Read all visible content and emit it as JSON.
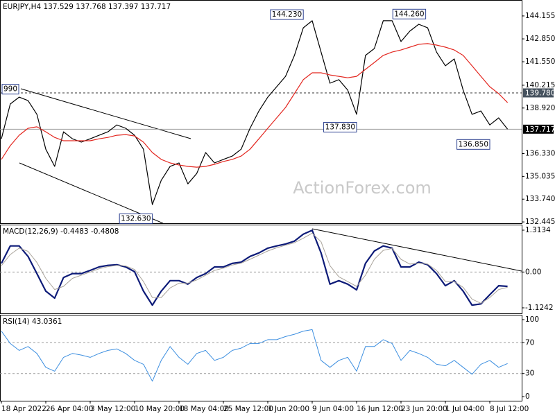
{
  "chart_data": [
    {
      "type": "line",
      "title": "EURJPY,H4  137.529 137.768 137.397 137.717",
      "watermark": "ActionForex.com",
      "ylim": [
        132.37,
        145.06
      ],
      "yticks": [
        144.155,
        {
          "value": 142.85,
          "label": "142.850"
        },
        {
          "value": 141.55,
          "label": "141.550"
        },
        140.215,
        {
          "value": 138.92,
          "label": "138.920"
        },
        {
          "value": 136.33,
          "label": "136.330"
        },
        135.035,
        {
          "value": 133.74,
          "label": "133.740"
        },
        132.445
      ],
      "price_lines": [
        {
          "value": 139.78,
          "label": "139.780",
          "style": "dashed",
          "color": "#46525e"
        },
        {
          "value": 137.717,
          "style": "solid",
          "color": "#000000"
        }
      ],
      "annotations": [
        {
          "label": "990",
          "value": 139.99,
          "x": 0
        },
        {
          "label": "144.230",
          "value": 144.23,
          "x": 34
        },
        {
          "label": "144.260",
          "value": 144.26,
          "x": 44
        },
        {
          "label": "137.830",
          "value": 137.83,
          "x": 40
        },
        {
          "label": "136.850",
          "value": 136.85,
          "x": 55
        },
        {
          "label": "132.630",
          "value": 132.63,
          "x": 17
        }
      ],
      "series": [
        {
          "color": "#000000",
          "width": 1.2,
          "values": [
            137.17,
            139.15,
            139.54,
            139.34,
            138.56,
            136.58,
            135.6,
            137.57,
            137.17,
            136.98,
            137.17,
            137.37,
            137.57,
            137.96,
            137.77,
            137.37,
            136.58,
            133.43,
            134.81,
            135.6,
            135.8,
            134.61,
            135.2,
            136.39,
            135.8,
            136.0,
            136.19,
            136.58,
            137.77,
            138.75,
            139.54,
            140.13,
            140.72,
            141.91,
            143.48,
            143.88,
            142.1,
            140.33,
            140.53,
            139.94,
            138.56,
            141.91,
            142.3,
            143.88,
            143.88,
            142.7,
            143.29,
            143.68,
            143.48,
            142.1,
            141.32,
            141.71,
            139.94,
            138.56,
            138.75,
            137.96,
            138.36,
            137.72
          ]
        },
        {
          "color": "#e3261f",
          "width": 1.2,
          "values": [
            136.0,
            136.78,
            137.37,
            137.77,
            137.85,
            137.57,
            137.25,
            137.06,
            137.06,
            137.06,
            137.06,
            137.17,
            137.25,
            137.37,
            137.41,
            137.33,
            136.98,
            136.39,
            136.0,
            135.8,
            135.68,
            135.6,
            135.56,
            135.6,
            135.72,
            135.88,
            136.0,
            136.19,
            136.58,
            137.17,
            137.77,
            138.36,
            138.95,
            139.74,
            140.53,
            140.92,
            140.92,
            140.8,
            140.72,
            140.64,
            140.72,
            141.12,
            141.51,
            141.91,
            142.1,
            142.22,
            142.38,
            142.54,
            142.58,
            142.5,
            142.38,
            142.22,
            141.91,
            141.32,
            140.72,
            140.13,
            139.74,
            139.23
          ]
        }
      ]
    },
    {
      "type": "line",
      "title": "MACD(12,26,9) -0.4483 -0.4808",
      "ylim": [
        -1.298,
        1.487
      ],
      "yticks": [
        1.3134,
        {
          "value": 0,
          "label": "0.00"
        },
        -1.1242
      ],
      "levels": [
        0
      ],
      "series": [
        {
          "color": "#0d1b78",
          "width": 2.2,
          "values": [
            0.27,
            0.82,
            0.82,
            0.49,
            -0.05,
            -0.6,
            -0.82,
            -0.17,
            -0.05,
            -0.05,
            0.05,
            0.16,
            0.21,
            0.23,
            0.16,
            0.01,
            -0.6,
            -1.04,
            -0.6,
            -0.27,
            -0.27,
            -0.38,
            -0.17,
            -0.05,
            0.16,
            0.16,
            0.27,
            0.31,
            0.49,
            0.6,
            0.75,
            0.82,
            0.88,
            0.97,
            1.19,
            1.31,
            0.6,
            -0.38,
            -0.27,
            -0.38,
            -0.56,
            0.27,
            0.66,
            0.82,
            0.75,
            0.16,
            0.16,
            0.31,
            0.23,
            -0.05,
            -0.43,
            -0.27,
            -0.6,
            -1.04,
            -1.0,
            -0.71,
            -0.43,
            -0.45
          ]
        },
        {
          "color": "#a9a39a",
          "width": 1,
          "values": [
            0.2,
            0.55,
            0.75,
            0.65,
            0.3,
            -0.2,
            -0.55,
            -0.45,
            -0.2,
            -0.1,
            0.0,
            0.1,
            0.17,
            0.21,
            0.19,
            0.08,
            -0.3,
            -0.8,
            -0.8,
            -0.5,
            -0.35,
            -0.35,
            -0.25,
            -0.1,
            0.05,
            0.12,
            0.22,
            0.28,
            0.4,
            0.53,
            0.66,
            0.76,
            0.84,
            0.92,
            1.06,
            1.22,
            0.95,
            0.2,
            -0.15,
            -0.3,
            -0.45,
            -0.1,
            0.4,
            0.68,
            0.74,
            0.4,
            0.25,
            0.28,
            0.25,
            0.05,
            -0.3,
            -0.3,
            -0.48,
            -0.85,
            -0.98,
            -0.8,
            -0.55,
            -0.48
          ]
        }
      ]
    },
    {
      "type": "line",
      "title": "RSI(14) 43.0361",
      "ylim": [
        -5.4,
        106.3
      ],
      "yticks": [
        100,
        70,
        30,
        0
      ],
      "levels": [
        70,
        30
      ],
      "categories": [
        "18 Apr 2022",
        null,
        null,
        null,
        null,
        "26 Apr 04:00",
        null,
        null,
        null,
        null,
        "3 May 12:00",
        null,
        null,
        null,
        null,
        "10 May 20:00",
        null,
        null,
        null,
        null,
        "18 May 04:00",
        null,
        null,
        null,
        null,
        "25 May 12:00",
        null,
        null,
        null,
        null,
        "1 Jun 20:00",
        null,
        null,
        null,
        null,
        "9 Jun 04:00",
        null,
        null,
        null,
        null,
        "16 Jun 12:00",
        null,
        null,
        null,
        null,
        "23 Jun 20:00",
        null,
        null,
        null,
        null,
        "1 Jul 04:00",
        null,
        null,
        null,
        null,
        "8 Jul 12:00",
        null,
        null
      ],
      "series": [
        {
          "color": "#3d8fe0",
          "width": 1,
          "values": [
            85,
            69,
            60,
            65,
            56,
            38,
            33,
            51,
            56,
            54,
            51,
            56,
            60,
            62,
            56,
            47,
            42,
            20,
            47,
            65,
            51,
            42,
            56,
            60,
            47,
            51,
            60,
            63,
            69,
            69,
            74,
            74,
            78,
            81,
            85,
            87,
            47,
            38,
            47,
            51,
            33,
            65,
            65,
            74,
            69,
            47,
            60,
            56,
            51,
            42,
            40,
            47,
            38,
            29,
            42,
            47,
            38,
            43
          ]
        }
      ]
    }
  ]
}
